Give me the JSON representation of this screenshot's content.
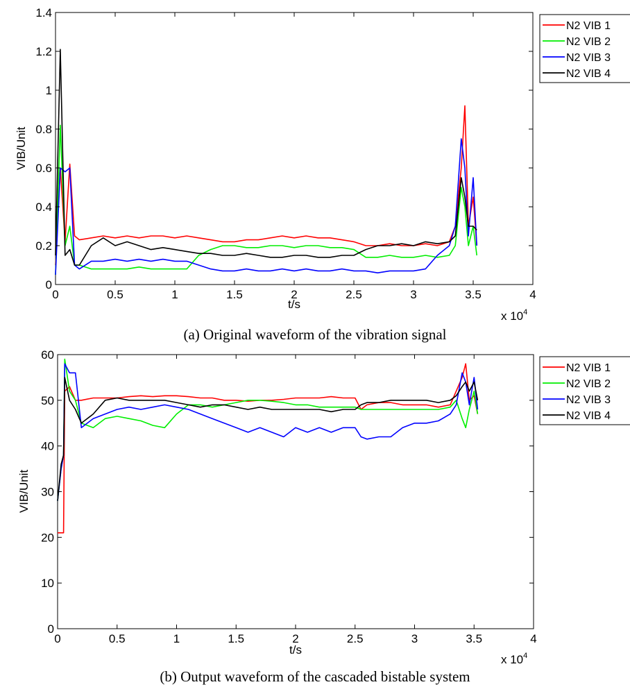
{
  "chart_data": [
    {
      "type": "line",
      "caption": "(a) Original waveform of the vibration signal",
      "xlabel": "t/s",
      "ylabel": "VIB/Unit",
      "x_exponent_label": "x 10",
      "x_exponent": "4",
      "xlim": [
        0,
        40000
      ],
      "ylim": [
        0,
        1.4
      ],
      "xticks": [
        0,
        5000,
        10000,
        15000,
        20000,
        25000,
        30000,
        35000,
        40000
      ],
      "xtick_labels": [
        "0",
        "0.5",
        "1",
        "1.5",
        "2",
        "2.5",
        "3",
        "3.5",
        "4"
      ],
      "yticks": [
        0,
        0.2,
        0.4,
        0.6,
        0.8,
        1.0,
        1.2,
        1.4
      ],
      "ytick_labels": [
        "0",
        "0.2",
        "0.4",
        "0.6",
        "0.8",
        "1",
        "1.2",
        "1.4"
      ],
      "grid": false,
      "legend_position": "outside-top-right",
      "series": [
        {
          "name": "N2 VIB 1",
          "color": "#ff0000",
          "x": [
            0,
            400,
            800,
            1200,
            1600,
            2000,
            3000,
            4000,
            5000,
            6000,
            7000,
            8000,
            9000,
            10000,
            11000,
            12000,
            13000,
            14000,
            15000,
            16000,
            17000,
            18000,
            19000,
            20000,
            21000,
            22000,
            23000,
            24000,
            25000,
            26000,
            27000,
            28000,
            29000,
            30000,
            31000,
            32000,
            33000,
            33500,
            34000,
            34300,
            34600,
            35000,
            35300
          ],
          "y": [
            0.1,
            0.6,
            0.22,
            0.62,
            0.25,
            0.23,
            0.24,
            0.25,
            0.24,
            0.25,
            0.24,
            0.25,
            0.25,
            0.24,
            0.25,
            0.24,
            0.23,
            0.22,
            0.22,
            0.23,
            0.23,
            0.24,
            0.25,
            0.24,
            0.25,
            0.24,
            0.24,
            0.23,
            0.22,
            0.2,
            0.2,
            0.21,
            0.2,
            0.2,
            0.21,
            0.2,
            0.22,
            0.3,
            0.6,
            0.92,
            0.3,
            0.45,
            0.2
          ]
        },
        {
          "name": "N2 VIB 2",
          "color": "#00ee00",
          "x": [
            0,
            400,
            800,
            1200,
            1600,
            2000,
            3000,
            4000,
            5000,
            6000,
            7000,
            8000,
            9000,
            10000,
            11000,
            12000,
            13000,
            14000,
            15000,
            16000,
            17000,
            18000,
            19000,
            20000,
            21000,
            22000,
            23000,
            24000,
            25000,
            26000,
            27000,
            28000,
            29000,
            30000,
            31000,
            32000,
            33000,
            33500,
            34000,
            34300,
            34600,
            35000,
            35300
          ],
          "y": [
            0.05,
            0.82,
            0.2,
            0.3,
            0.1,
            0.1,
            0.08,
            0.08,
            0.08,
            0.08,
            0.09,
            0.08,
            0.08,
            0.08,
            0.08,
            0.15,
            0.18,
            0.2,
            0.2,
            0.19,
            0.19,
            0.2,
            0.2,
            0.19,
            0.2,
            0.2,
            0.19,
            0.19,
            0.18,
            0.14,
            0.14,
            0.15,
            0.14,
            0.14,
            0.15,
            0.14,
            0.15,
            0.2,
            0.5,
            0.4,
            0.2,
            0.3,
            0.15
          ]
        },
        {
          "name": "N2 VIB 3",
          "color": "#0000ff",
          "x": [
            0,
            400,
            800,
            1200,
            1600,
            2000,
            3000,
            4000,
            5000,
            6000,
            7000,
            8000,
            9000,
            10000,
            11000,
            12000,
            13000,
            14000,
            15000,
            16000,
            17000,
            18000,
            19000,
            20000,
            21000,
            22000,
            23000,
            24000,
            25000,
            26000,
            27000,
            28000,
            29000,
            30000,
            31000,
            32000,
            33000,
            33500,
            34000,
            34300,
            34600,
            35000,
            35300
          ],
          "y": [
            0.05,
            0.6,
            0.58,
            0.6,
            0.1,
            0.08,
            0.12,
            0.12,
            0.13,
            0.12,
            0.13,
            0.12,
            0.13,
            0.12,
            0.12,
            0.1,
            0.08,
            0.07,
            0.07,
            0.08,
            0.07,
            0.07,
            0.08,
            0.07,
            0.08,
            0.07,
            0.07,
            0.08,
            0.07,
            0.07,
            0.06,
            0.07,
            0.07,
            0.07,
            0.08,
            0.15,
            0.2,
            0.3,
            0.75,
            0.6,
            0.25,
            0.55,
            0.2
          ]
        },
        {
          "name": "N2 VIB 4",
          "color": "#000000",
          "x": [
            0,
            400,
            800,
            1200,
            1600,
            2000,
            3000,
            4000,
            5000,
            6000,
            7000,
            8000,
            9000,
            10000,
            11000,
            12000,
            13000,
            14000,
            15000,
            16000,
            17000,
            18000,
            19000,
            20000,
            21000,
            22000,
            23000,
            24000,
            25000,
            26000,
            27000,
            28000,
            29000,
            30000,
            31000,
            32000,
            33000,
            33500,
            34000,
            34300,
            34600,
            35000,
            35300
          ],
          "y": [
            0.15,
            1.21,
            0.15,
            0.18,
            0.1,
            0.1,
            0.2,
            0.24,
            0.2,
            0.22,
            0.2,
            0.18,
            0.19,
            0.18,
            0.17,
            0.16,
            0.16,
            0.15,
            0.15,
            0.16,
            0.15,
            0.14,
            0.14,
            0.15,
            0.15,
            0.14,
            0.14,
            0.15,
            0.15,
            0.18,
            0.2,
            0.2,
            0.21,
            0.2,
            0.22,
            0.21,
            0.22,
            0.25,
            0.55,
            0.45,
            0.3,
            0.3,
            0.28
          ]
        }
      ]
    },
    {
      "type": "line",
      "caption": "(b) Output waveform of the cascaded bistable system",
      "xlabel": "t/s",
      "ylabel": "VIB/Unit",
      "x_exponent_label": "x 10",
      "x_exponent": "4",
      "xlim": [
        0,
        40000
      ],
      "ylim": [
        0,
        60
      ],
      "xticks": [
        0,
        5000,
        10000,
        15000,
        20000,
        25000,
        30000,
        35000,
        40000
      ],
      "xtick_labels": [
        "0",
        "0.5",
        "1",
        "1.5",
        "2",
        "2.5",
        "3",
        "3.5",
        "4"
      ],
      "yticks": [
        0,
        10,
        20,
        30,
        40,
        50,
        60
      ],
      "ytick_labels": [
        "0",
        "10",
        "20",
        "30",
        "40",
        "50",
        "60"
      ],
      "grid": false,
      "legend_position": "outside-top-right",
      "series": [
        {
          "name": "N2 VIB 1",
          "color": "#ff0000",
          "x": [
            0,
            300,
            500,
            600,
            1000,
            1500,
            2000,
            3000,
            4000,
            5000,
            6000,
            7000,
            8000,
            9000,
            10000,
            11000,
            12000,
            13000,
            14000,
            15000,
            16000,
            17000,
            18000,
            19000,
            20000,
            21000,
            22000,
            23000,
            24000,
            25000,
            25500,
            26000,
            27000,
            28000,
            29000,
            30000,
            31000,
            32000,
            33000,
            33500,
            34000,
            34300,
            34600,
            35000,
            35300
          ],
          "y": [
            21,
            21,
            21,
            52,
            53,
            50,
            50,
            50.5,
            50.5,
            50.5,
            50.8,
            51,
            50.8,
            51,
            51,
            50.8,
            50.5,
            50.5,
            50,
            50,
            49.8,
            50,
            50,
            50.2,
            50.5,
            50.5,
            50.5,
            50.8,
            50.5,
            50.5,
            48,
            49,
            49.5,
            49.5,
            49,
            49,
            49,
            48.5,
            49,
            52,
            55,
            58,
            50,
            51,
            47
          ]
        },
        {
          "name": "N2 VIB 2",
          "color": "#00ee00",
          "x": [
            0,
            300,
            500,
            600,
            1000,
            1500,
            2000,
            3000,
            4000,
            5000,
            6000,
            7000,
            8000,
            9000,
            10000,
            11000,
            12000,
            13000,
            14000,
            15000,
            16000,
            17000,
            18000,
            19000,
            20000,
            21000,
            22000,
            23000,
            24000,
            25000,
            25500,
            26000,
            27000,
            28000,
            29000,
            30000,
            31000,
            32000,
            33000,
            33500,
            34000,
            34300,
            34600,
            35000,
            35300
          ],
          "y": [
            28,
            35,
            38,
            59,
            52,
            50,
            45,
            44,
            46,
            46.5,
            46,
            45.5,
            44.5,
            44,
            47,
            49,
            49,
            48.5,
            49,
            49.5,
            50,
            50,
            49.8,
            49.5,
            49,
            49,
            48.5,
            48.5,
            48.5,
            48.5,
            48,
            48,
            48,
            48,
            48,
            48,
            48,
            48,
            48.5,
            50,
            46,
            44,
            48,
            52,
            47
          ]
        },
        {
          "name": "N2 VIB 3",
          "color": "#0000ff",
          "x": [
            0,
            300,
            500,
            600,
            1000,
            1500,
            2000,
            3000,
            4000,
            5000,
            6000,
            7000,
            8000,
            9000,
            10000,
            11000,
            12000,
            13000,
            14000,
            15000,
            16000,
            17000,
            18000,
            19000,
            20000,
            21000,
            22000,
            23000,
            24000,
            25000,
            25500,
            26000,
            27000,
            28000,
            29000,
            30000,
            31000,
            32000,
            33000,
            33500,
            34000,
            34300,
            34600,
            35000,
            35300
          ],
          "y": [
            28,
            35,
            38,
            58,
            56,
            56,
            44,
            46,
            47,
            48,
            48.5,
            48,
            48.5,
            49,
            48.5,
            48,
            47,
            46,
            45,
            44,
            43,
            44,
            43,
            42,
            44,
            43,
            44,
            43,
            44,
            44,
            42,
            41.5,
            42,
            42,
            44,
            45,
            45,
            45.5,
            47,
            49,
            56,
            54,
            49,
            55,
            48
          ]
        },
        {
          "name": "N2 VIB 4",
          "color": "#000000",
          "x": [
            0,
            300,
            500,
            600,
            1000,
            1500,
            2000,
            3000,
            4000,
            5000,
            6000,
            7000,
            8000,
            9000,
            10000,
            11000,
            12000,
            13000,
            14000,
            15000,
            16000,
            17000,
            18000,
            19000,
            20000,
            21000,
            22000,
            23000,
            24000,
            25000,
            25500,
            26000,
            27000,
            28000,
            29000,
            30000,
            31000,
            32000,
            33000,
            33500,
            34000,
            34300,
            34600,
            35000,
            35300
          ],
          "y": [
            28,
            36,
            38,
            55,
            50,
            48,
            45,
            47,
            50,
            50.5,
            50,
            50,
            50,
            50,
            49.5,
            49,
            48.5,
            49,
            49,
            48.5,
            48,
            48.5,
            48,
            48,
            48,
            48,
            48,
            47.5,
            48,
            48,
            49,
            49.5,
            49.5,
            50,
            50,
            50,
            50,
            49.5,
            50,
            51,
            53,
            54,
            52,
            54,
            50
          ]
        }
      ]
    }
  ]
}
